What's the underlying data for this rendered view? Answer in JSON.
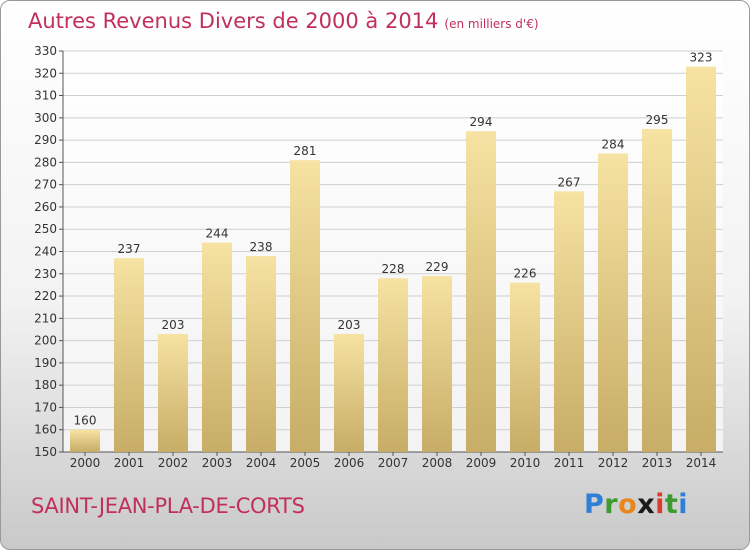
{
  "header": {
    "title": "Autres Revenus Divers de 2000 à 2014",
    "unit": "(en milliers d'€)"
  },
  "footer": {
    "location": "SAINT-JEAN-PLA-DE-CORTS",
    "brand_letters": [
      "P",
      "r",
      "o",
      "x",
      "i",
      "t",
      "i"
    ]
  },
  "colors": {
    "title": "#c0305a",
    "bar_top": "#f6e2a2",
    "bar_bottom": "#c7ad66",
    "grid": "#cfcfcf"
  },
  "chart_data": {
    "type": "bar",
    "title": "Autres Revenus Divers de 2000 à 2014",
    "subtitle": "(en milliers d'€)",
    "xlabel": "",
    "ylabel": "",
    "categories": [
      "2000",
      "2001",
      "2002",
      "2003",
      "2004",
      "2005",
      "2006",
      "2007",
      "2008",
      "2009",
      "2010",
      "2011",
      "2012",
      "2013",
      "2014"
    ],
    "values": [
      160,
      237,
      203,
      244,
      238,
      281,
      203,
      228,
      229,
      294,
      226,
      267,
      284,
      295,
      323
    ],
    "ylim": [
      150,
      330
    ],
    "yticks": [
      150,
      160,
      170,
      180,
      190,
      200,
      210,
      220,
      230,
      240,
      250,
      260,
      270,
      280,
      290,
      300,
      310,
      320,
      330
    ],
    "grid": true,
    "legend": "none"
  }
}
